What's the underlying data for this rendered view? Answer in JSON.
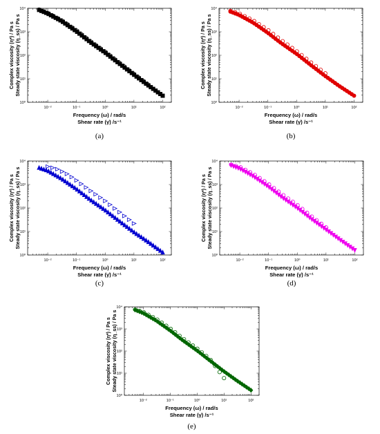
{
  "chart_data": [
    {
      "type": "scatter",
      "label": "(a)",
      "xlabel_line1": "Frequency (ω) / rad/s",
      "xlabel_line2": "Shear rate (γ̇) /s⁻¹",
      "ylabel_line1": "Complex viscosity (η*) / Pa s",
      "ylabel_line2": "Steady state viscosity (η_ss) / Pa s",
      "x_scale": "log",
      "y_scale": "log",
      "xlim": [
        0.002,
        200
      ],
      "ylim": [
        1,
        10000
      ],
      "x_ticks": [
        "10⁻²",
        "10⁻¹",
        "10⁰",
        "10¹",
        "10²"
      ],
      "y_ticks": [
        "10⁰",
        "10¹",
        "10²",
        "10³",
        "10⁴"
      ],
      "grid": false,
      "series": [
        {
          "marker": "filled-square",
          "color": "#000000",
          "x": [
            0.005,
            0.01,
            0.03,
            0.1,
            0.3,
            1,
            3,
            10,
            30,
            100
          ],
          "y": [
            8500,
            6000,
            2900,
            1050,
            370,
            130,
            46,
            15,
            5.5,
            1.9
          ]
        },
        {
          "marker": "open-circle",
          "color": "#000000",
          "x": [
            0.005,
            0.01,
            0.03,
            0.1,
            0.3,
            1,
            3,
            10,
            30
          ],
          "y": [
            8800,
            6300,
            3100,
            1150,
            400,
            140,
            50,
            16,
            5.8
          ]
        }
      ]
    },
    {
      "type": "scatter",
      "label": "(b)",
      "xlabel_line1": "Frequency (ω) / rad/s",
      "xlabel_line2": "Shear rate (γ̇) /s⁻¹",
      "ylabel_line1": "Complex viscosity (η*) / Pa s",
      "ylabel_line2": "Steady state viscosity (η_ss) / Pa s",
      "x_scale": "log",
      "y_scale": "log",
      "xlim": [
        0.002,
        200
      ],
      "ylim": [
        1,
        10000
      ],
      "x_ticks": [
        "10⁻²",
        "10⁻¹",
        "10⁰",
        "10¹",
        "10²"
      ],
      "y_ticks": [
        "10⁰",
        "10¹",
        "10²",
        "10³",
        "10⁴"
      ],
      "grid": false,
      "series": [
        {
          "marker": "filled-circle",
          "color": "#e00000",
          "x": [
            0.005,
            0.01,
            0.03,
            0.1,
            0.3,
            1,
            3,
            10,
            30,
            100
          ],
          "y": [
            7200,
            5200,
            2500,
            900,
            320,
            115,
            40,
            13,
            5,
            1.9
          ]
        },
        {
          "marker": "open-circle",
          "color": "#e00000",
          "x": [
            0.005,
            0.01,
            0.03,
            0.1,
            0.3,
            1,
            3,
            10
          ],
          "y": [
            7800,
            6000,
            3100,
            1200,
            430,
            150,
            52,
            17
          ]
        }
      ]
    },
    {
      "type": "scatter",
      "label": "(c)",
      "xlabel_line1": "Frequency (ω) / rad/s",
      "xlabel_line2": "Shear rate (γ̇) /s⁻¹",
      "ylabel_line1": "Complex viscosity (η*) / Pa s",
      "ylabel_line2": "Steady state viscosity (η_ss) / Pa s",
      "x_scale": "log",
      "y_scale": "log",
      "xlim": [
        0.002,
        200
      ],
      "ylim": [
        1,
        10000
      ],
      "x_ticks": [
        "10⁻²",
        "10⁻¹",
        "10⁰",
        "10¹",
        "10²"
      ],
      "y_ticks": [
        "10⁰",
        "10¹",
        "10²",
        "10³",
        "10⁴"
      ],
      "grid": false,
      "series": [
        {
          "marker": "filled-triangle-up",
          "color": "#0000d0",
          "x": [
            0.005,
            0.01,
            0.03,
            0.1,
            0.3,
            1,
            3,
            10,
            30,
            100
          ],
          "y": [
            5200,
            3900,
            1800,
            650,
            230,
            82,
            29,
            9.5,
            3.8,
            1.3
          ]
        },
        {
          "marker": "open-triangle-right",
          "color": "#0000d0",
          "x": [
            0.01,
            0.02,
            0.05,
            0.1,
            0.3,
            1,
            3,
            10
          ],
          "y": [
            5800,
            4700,
            2700,
            1500,
            560,
            200,
            70,
            22
          ]
        }
      ]
    },
    {
      "type": "scatter",
      "label": "(d)",
      "xlabel_line1": "Frequency (ω) / rad/s",
      "xlabel_line2": "Shear rate (γ̇) /s⁻¹",
      "ylabel_line1": "Complex viscosity (η*) / Pa s",
      "ylabel_line2": "Steady state viscosity (η_ss) / Pa s",
      "x_scale": "log",
      "y_scale": "log",
      "xlim": [
        0.002,
        200
      ],
      "ylim": [
        1,
        10000
      ],
      "x_ticks": [
        "10⁻²",
        "10⁻¹",
        "10⁰",
        "10¹",
        "10²"
      ],
      "y_ticks": [
        "10⁰",
        "10¹",
        "10²",
        "10³",
        "10⁴"
      ],
      "grid": false,
      "series": [
        {
          "marker": "filled-triangle-down",
          "color": "#ee00ee",
          "x": [
            0.005,
            0.01,
            0.03,
            0.1,
            0.3,
            1,
            3,
            10,
            30,
            100
          ],
          "y": [
            6500,
            4700,
            2200,
            800,
            280,
            100,
            35,
            12,
            4.5,
            1.6
          ]
        },
        {
          "marker": "open-circle",
          "color": "#ee00ee",
          "x": [
            0.005,
            0.01,
            0.03,
            0.1,
            0.3,
            1,
            3,
            10
          ],
          "y": [
            7000,
            5600,
            2800,
            1050,
            380,
            135,
            46,
            15
          ]
        }
      ]
    },
    {
      "type": "scatter",
      "label": "(e)",
      "xlabel_line1": "Frequency (ω) / rad/s",
      "xlabel_line2": "Shear rate (γ̇) /s⁻¹",
      "ylabel_line1": "Complex viscosity (η*) / Pa s",
      "ylabel_line2": "Steady state viscosity (η_ss) / Pa s",
      "x_scale": "log",
      "y_scale": "log",
      "xlim": [
        0.002,
        200
      ],
      "ylim": [
        1,
        10000
      ],
      "x_ticks": [
        "10⁻²",
        "10⁻¹",
        "10⁰",
        "10¹",
        "10²"
      ],
      "y_ticks": [
        "10⁰",
        "10¹",
        "10²",
        "10³",
        "10⁴"
      ],
      "grid": false,
      "series": [
        {
          "marker": "filled-diamond",
          "color": "#006600",
          "x": [
            0.005,
            0.01,
            0.03,
            0.1,
            0.3,
            1,
            3,
            10,
            30,
            100
          ],
          "y": [
            7200,
            5200,
            2400,
            850,
            300,
            105,
            37,
            12,
            4.6,
            1.7
          ]
        },
        {
          "marker": "open-circle",
          "color": "#006600",
          "x": [
            0.005,
            0.01,
            0.03,
            0.1,
            0.3,
            1,
            3,
            10
          ],
          "y": [
            7600,
            5800,
            2900,
            1050,
            370,
            130,
            44,
            6
          ]
        }
      ]
    }
  ]
}
